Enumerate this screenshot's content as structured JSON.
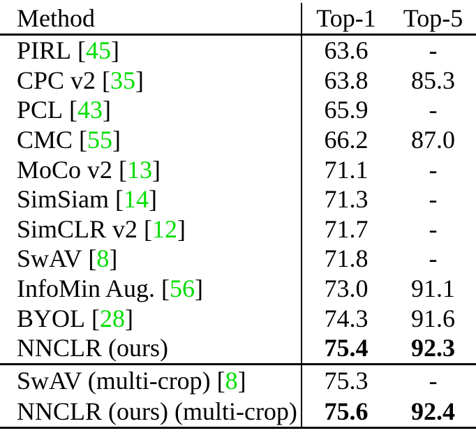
{
  "table": {
    "citation_color": "#00dd00",
    "citation_open": "[",
    "citation_close": "]",
    "columns": [
      "Method",
      "Top-1",
      "Top-5"
    ],
    "sections": [
      {
        "rows": [
          {
            "method": "PIRL",
            "cite": "45",
            "top1": "63.6",
            "top5": "-",
            "bold": false
          },
          {
            "method": "CPC v2",
            "cite": "35",
            "top1": "63.8",
            "top5": "85.3",
            "bold": false
          },
          {
            "method": "PCL",
            "cite": "43",
            "top1": "65.9",
            "top5": "-",
            "bold": false
          },
          {
            "method": "CMC",
            "cite": "55",
            "top1": "66.2",
            "top5": "87.0",
            "bold": false
          },
          {
            "method": "MoCo v2",
            "cite": "13",
            "top1": "71.1",
            "top5": "-",
            "bold": false
          },
          {
            "method": "SimSiam",
            "cite": "14",
            "top1": "71.3",
            "top5": "-",
            "bold": false
          },
          {
            "method": "SimCLR v2",
            "cite": "12",
            "top1": "71.7",
            "top5": "-",
            "bold": false
          },
          {
            "method": "SwAV",
            "cite": "8",
            "top1": "71.8",
            "top5": "-",
            "bold": false
          },
          {
            "method": "InfoMin Aug.",
            "cite": "56",
            "top1": "73.0",
            "top5": "91.1",
            "bold": false
          },
          {
            "method": "BYOL",
            "cite": "28",
            "top1": "74.3",
            "top5": "91.6",
            "bold": false
          },
          {
            "method": "NNCLR (ours)",
            "cite": "",
            "top1": "75.4",
            "top5": "92.3",
            "bold": true
          }
        ]
      },
      {
        "rows": [
          {
            "method": "SwAV (multi-crop)",
            "cite": "8",
            "top1": "75.3",
            "top5": "-",
            "bold": false
          },
          {
            "method": "NNCLR (ours) (multi-crop)",
            "cite": "",
            "top1": "75.6",
            "top5": "92.4",
            "bold": true
          }
        ]
      }
    ]
  }
}
